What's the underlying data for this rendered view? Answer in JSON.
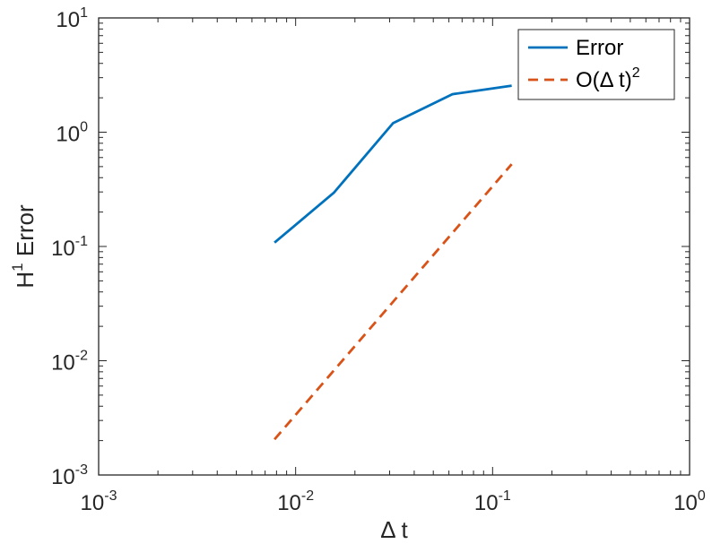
{
  "chart_data": {
    "type": "line",
    "xscale": "log",
    "yscale": "log",
    "xlim": [
      0.001,
      1
    ],
    "ylim": [
      0.001,
      10
    ],
    "grid": false,
    "legend_position": "top-right",
    "xlabel": "Δ t",
    "ylabel": {
      "main": "H",
      "sup": "1",
      "rest": " Error"
    },
    "x_ticks": [
      {
        "value": 0.001,
        "base": "10",
        "exp": "-3"
      },
      {
        "value": 0.01,
        "base": "10",
        "exp": "-2"
      },
      {
        "value": 0.1,
        "base": "10",
        "exp": "-1"
      },
      {
        "value": 1,
        "base": "10",
        "exp": "0"
      }
    ],
    "y_ticks": [
      {
        "value": 0.001,
        "base": "10",
        "exp": "-3"
      },
      {
        "value": 0.01,
        "base": "10",
        "exp": "-2"
      },
      {
        "value": 0.1,
        "base": "10",
        "exp": "-1"
      },
      {
        "value": 1,
        "base": "10",
        "exp": "0"
      },
      {
        "value": 10,
        "base": "10",
        "exp": "1"
      }
    ],
    "series": [
      {
        "name": "Error",
        "legend_main": "Error",
        "legend_sup": "",
        "color": "#0072BD",
        "dash": "solid",
        "x": [
          0.0078125,
          0.015625,
          0.03125,
          0.0625,
          0.125
        ],
        "y": [
          0.108,
          0.295,
          1.2,
          2.15,
          2.55
        ]
      },
      {
        "name": "O(Δ t)^2",
        "legend_main": "O(Δ t)",
        "legend_sup": "2",
        "color": "#D95319",
        "dash": "dashed",
        "x": [
          0.0078125,
          0.125
        ],
        "y": [
          0.00205,
          0.525
        ]
      }
    ]
  }
}
